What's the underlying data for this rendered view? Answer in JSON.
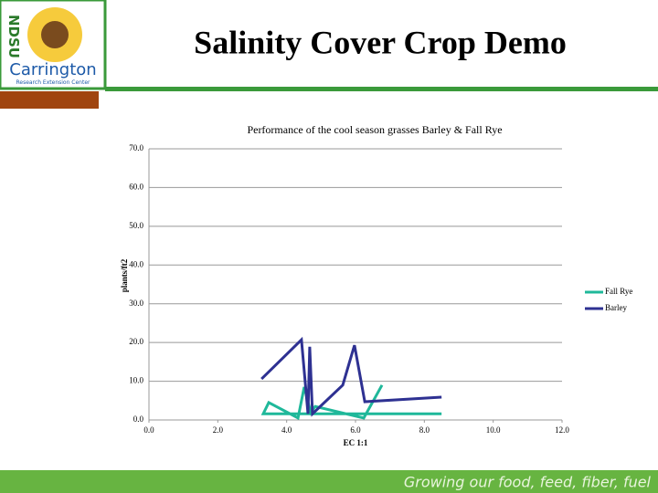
{
  "header": {
    "title": "Salinity Cover Crop Demo",
    "logo_letters": "NDSU",
    "logo_name": "Carrington",
    "logo_sub": "Research Extension Center"
  },
  "footer": {
    "text": "Growing our food, feed, fiber, fuel"
  },
  "chart_data": {
    "type": "line",
    "title": "Performance of the cool season grasses Barley & Fall Rye",
    "x_label": "EC 1:1",
    "y_label": "plants/ft2",
    "xlim": [
      0,
      12
    ],
    "ylim": [
      0,
      70
    ],
    "grid": true,
    "legend": "right",
    "xticks": [
      {
        "value": 0,
        "label": "0.0"
      },
      {
        "value": 2,
        "label": "2.0"
      },
      {
        "value": 4,
        "label": "4.0"
      },
      {
        "value": 6,
        "label": "6.0"
      },
      {
        "value": 8,
        "label": "8.0"
      },
      {
        "value": 10,
        "label": "10.0"
      },
      {
        "value": 12,
        "label": "12.0"
      }
    ],
    "yticks": [
      {
        "value": 0,
        "label": "0.0"
      },
      {
        "value": 10,
        "label": "10.0"
      },
      {
        "value": 20,
        "label": "20.0"
      },
      {
        "value": 30,
        "label": "30.0"
      },
      {
        "value": 40,
        "label": "40.0"
      },
      {
        "value": 50,
        "label": "50.0"
      },
      {
        "value": 60,
        "label": "60.0"
      },
      {
        "value": 70,
        "label": "70.0"
      }
    ],
    "series": [
      {
        "name": "Fall Rye",
        "color": "#1fb89a",
        "x": [
          8.5,
          3.32,
          3.48,
          4.33,
          4.51,
          4.7,
          4.83,
          6.24,
          6.77
        ],
        "values": [
          1.6,
          1.6,
          4.5,
          0.5,
          8.5,
          1.9,
          3.5,
          0.5,
          9.0
        ]
      },
      {
        "name": "Barley",
        "color": "#2e3192",
        "x": [
          3.27,
          4.43,
          4.62,
          4.67,
          4.75,
          5.63,
          5.97,
          6.27,
          8.5
        ],
        "values": [
          10.6,
          20.7,
          1.6,
          18.9,
          1.6,
          9.0,
          19.3,
          4.7,
          5.9
        ]
      }
    ]
  }
}
